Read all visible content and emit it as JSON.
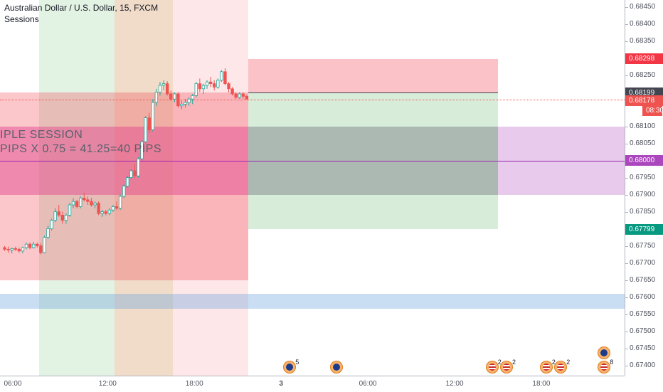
{
  "header": {
    "title": "Australian Dollar / U.S. Dollar, 15, FXCM",
    "indicator": "Sessions"
  },
  "annotation": {
    "line1": "IPLE SESSION",
    "line2": " PIPS X 0.75 = 41.25=40 PIPS"
  },
  "price_axis": {
    "ticks": [
      "0.68450",
      "0.68400",
      "0.68350",
      "0.68250",
      "0.68200",
      "0.68100",
      "0.68050",
      "0.67950",
      "0.67900",
      "0.67850",
      "0.67750",
      "0.67700",
      "0.67650",
      "0.67600",
      "0.67550",
      "0.67500",
      "0.67450",
      "0.67400"
    ],
    "badges": [
      {
        "label": "0.68298",
        "color": "#f23645"
      },
      {
        "label": "0.68199",
        "color": "#434651"
      },
      {
        "label": "0.68178",
        "color": "#ef5350"
      },
      {
        "label": "08:30",
        "color": "#ef5350"
      },
      {
        "label": "0.68000",
        "color": "#ab47bc"
      },
      {
        "label": "0.67799",
        "color": "#089981"
      }
    ]
  },
  "time_axis": {
    "labels": [
      "06:00",
      "12:00",
      "18:00",
      "3",
      "06:00",
      "12:00",
      "18:00"
    ]
  },
  "events": [
    {
      "name": "au-event-1",
      "count": "5"
    },
    {
      "name": "au-event-2",
      "count": ""
    },
    {
      "name": "us-event-1",
      "count": "2"
    },
    {
      "name": "us-event-2",
      "count": "2"
    },
    {
      "name": "us-event-3",
      "count": "2"
    },
    {
      "name": "us-event-4",
      "count": "2"
    },
    {
      "name": "au-event-3",
      "count": ""
    },
    {
      "name": "us-event-5",
      "count": "8"
    }
  ],
  "chart_data": {
    "type": "candlestick",
    "symbol": "AUDUSD",
    "timeframe": "15",
    "ohlc": [
      [
        0.67745,
        0.6775,
        0.67735,
        0.6774
      ],
      [
        0.6774,
        0.67748,
        0.6773,
        0.67738
      ],
      [
        0.67738,
        0.67745,
        0.67728,
        0.67742
      ],
      [
        0.67742,
        0.67748,
        0.67735,
        0.6774
      ],
      [
        0.6774,
        0.67745,
        0.6773,
        0.67735
      ],
      [
        0.67735,
        0.67748,
        0.67728,
        0.67745
      ],
      [
        0.67745,
        0.6776,
        0.6774,
        0.67755
      ],
      [
        0.67755,
        0.6776,
        0.6774,
        0.67745
      ],
      [
        0.67745,
        0.67762,
        0.67742,
        0.67755
      ],
      [
        0.67755,
        0.6776,
        0.67745,
        0.6775
      ],
      [
        0.6775,
        0.67758,
        0.67725,
        0.6773
      ],
      [
        0.6773,
        0.6778,
        0.67728,
        0.67775
      ],
      [
        0.67775,
        0.6781,
        0.6777,
        0.678
      ],
      [
        0.678,
        0.6783,
        0.67795,
        0.67825
      ],
      [
        0.67825,
        0.6786,
        0.6782,
        0.6785
      ],
      [
        0.6785,
        0.6787,
        0.67835,
        0.6784
      ],
      [
        0.6784,
        0.6785,
        0.67815,
        0.67825
      ],
      [
        0.67825,
        0.67845,
        0.67815,
        0.6784
      ],
      [
        0.6784,
        0.67875,
        0.67835,
        0.6787
      ],
      [
        0.6787,
        0.6789,
        0.6786,
        0.6788
      ],
      [
        0.6788,
        0.67885,
        0.6786,
        0.67865
      ],
      [
        0.67865,
        0.67895,
        0.6786,
        0.6789
      ],
      [
        0.6789,
        0.67905,
        0.6788,
        0.67885
      ],
      [
        0.67885,
        0.67895,
        0.6787,
        0.6788
      ],
      [
        0.6788,
        0.6789,
        0.67865,
        0.6787
      ],
      [
        0.6787,
        0.6788,
        0.6786,
        0.67875
      ],
      [
        0.67875,
        0.6788,
        0.6784,
        0.67845
      ],
      [
        0.67845,
        0.67855,
        0.67835,
        0.6785
      ],
      [
        0.6785,
        0.67855,
        0.6784,
        0.67845
      ],
      [
        0.67845,
        0.6786,
        0.6784,
        0.67855
      ],
      [
        0.67855,
        0.6787,
        0.6785,
        0.67865
      ],
      [
        0.67865,
        0.6788,
        0.67855,
        0.6786
      ],
      [
        0.6786,
        0.679,
        0.67855,
        0.67895
      ],
      [
        0.67895,
        0.6793,
        0.6789,
        0.67925
      ],
      [
        0.67925,
        0.67955,
        0.6792,
        0.6795
      ],
      [
        0.6795,
        0.67975,
        0.67945,
        0.6797
      ],
      [
        0.6797,
        0.6799,
        0.6795,
        0.67955
      ],
      [
        0.67955,
        0.6801,
        0.6795,
        0.68005
      ],
      [
        0.68005,
        0.6806,
        0.68,
        0.68055
      ],
      [
        0.68055,
        0.6813,
        0.6805,
        0.68125
      ],
      [
        0.68125,
        0.6814,
        0.6808,
        0.6809
      ],
      [
        0.6809,
        0.6818,
        0.68085,
        0.6817
      ],
      [
        0.6817,
        0.6821,
        0.6816,
        0.682
      ],
      [
        0.682,
        0.6823,
        0.6819,
        0.6822
      ],
      [
        0.6822,
        0.68235,
        0.68205,
        0.68225
      ],
      [
        0.68225,
        0.68232,
        0.6819,
        0.68195
      ],
      [
        0.68195,
        0.68205,
        0.68175,
        0.6818
      ],
      [
        0.6818,
        0.682,
        0.6817,
        0.68195
      ],
      [
        0.68195,
        0.682,
        0.68155,
        0.6816
      ],
      [
        0.6816,
        0.68175,
        0.6815,
        0.68165
      ],
      [
        0.68165,
        0.6818,
        0.68155,
        0.6817
      ],
      [
        0.6817,
        0.68185,
        0.6816,
        0.6818
      ],
      [
        0.6818,
        0.68195,
        0.68165,
        0.6819
      ],
      [
        0.6819,
        0.6823,
        0.68185,
        0.68225
      ],
      [
        0.68225,
        0.6824,
        0.682,
        0.6821
      ],
      [
        0.6821,
        0.68225,
        0.68195,
        0.6822
      ],
      [
        0.6822,
        0.68235,
        0.6821,
        0.6823
      ],
      [
        0.6823,
        0.68245,
        0.68215,
        0.68225
      ],
      [
        0.68225,
        0.68235,
        0.68205,
        0.68215
      ],
      [
        0.68215,
        0.6824,
        0.6821,
        0.68235
      ],
      [
        0.68235,
        0.68265,
        0.6823,
        0.6826
      ],
      [
        0.6826,
        0.6827,
        0.6822,
        0.68225
      ],
      [
        0.68225,
        0.6823,
        0.682,
        0.6821
      ],
      [
        0.6821,
        0.68215,
        0.6819,
        0.68195
      ],
      [
        0.68195,
        0.682,
        0.6818,
        0.68185
      ],
      [
        0.68185,
        0.682,
        0.6818,
        0.68195
      ],
      [
        0.68195,
        0.682,
        0.6818,
        0.68188
      ],
      [
        0.68188,
        0.68192,
        0.68178,
        0.6818
      ]
    ],
    "session_boxes": [
      {
        "name": "asia-session",
        "color": "rgba(242,54,69,0.28)",
        "price_top": 0.682,
        "price_bottom": 0.6765,
        "start": 0,
        "end": 68
      },
      {
        "name": "mid-band",
        "color": "rgba(224,64,140,0.45)",
        "price_top": 0.681,
        "price_bottom": 0.679,
        "start": 0,
        "end": 68
      },
      {
        "name": "projection-upper",
        "color": "rgba(242,54,69,0.30)",
        "price_top": 0.68298,
        "price_bottom": 0.68199,
        "start": 68,
        "end": 137
      },
      {
        "name": "projection-lower",
        "color": "rgba(76,175,80,0.22)",
        "price_top": 0.68199,
        "price_bottom": 0.67799,
        "start": 68,
        "end": 137
      },
      {
        "name": "projection-mid",
        "color": "rgba(120,123,134,0.45)",
        "price_top": 0.681,
        "price_bottom": 0.679,
        "start": 68,
        "end": 137
      },
      {
        "name": "purple-zone",
        "color": "rgba(186,104,200,0.35)",
        "price_top": 0.681,
        "price_bottom": 0.679,
        "start": 137,
        "end": 172
      },
      {
        "name": "support-zone",
        "color": "rgba(100,160,220,0.35)",
        "price_top": 0.6761,
        "price_bottom": 0.67565,
        "start": 0,
        "end": 172
      }
    ],
    "session_bands": [
      {
        "name": "london-session",
        "color": "rgba(76,175,80,0.16)",
        "start": 10,
        "end": 31
      },
      {
        "name": "overlap-session",
        "color": "rgba(200,130,60,0.28)",
        "start": 31,
        "end": 47
      },
      {
        "name": "ny-session",
        "color": "rgba(242,54,69,0.12)",
        "start": 47,
        "end": 68
      }
    ],
    "lines": [
      {
        "name": "last-price-line",
        "price": 0.68199,
        "color": "#434651",
        "style": "solid"
      },
      {
        "name": "bid-line",
        "price": 0.68178,
        "color": "#ef5350",
        "style": "dotted"
      },
      {
        "name": "midline",
        "price": 0.68,
        "color": "#9c27b0",
        "style": "solid"
      }
    ],
    "ylim": [
      0.6737,
      0.6847
    ]
  }
}
